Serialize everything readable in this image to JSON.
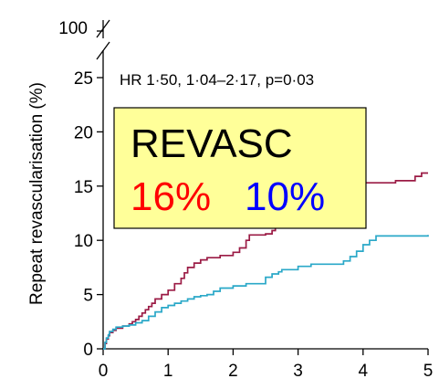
{
  "chart_data": {
    "type": "line",
    "title": "",
    "xlabel": "",
    "ylabel": "Repeat revascularisation (%)",
    "xlim": [
      0,
      5
    ],
    "ylim": [
      0,
      25
    ],
    "axis_break": true,
    "y_break_top_label": "100",
    "x_ticks": [
      "0",
      "1",
      "2",
      "3",
      "4",
      "5"
    ],
    "y_ticks": [
      "0",
      "5",
      "10",
      "15",
      "20",
      "25"
    ],
    "annotation": "HR 1·50, 1·04–2·17, p=0·03",
    "legend_box": {
      "title": "REVASC",
      "labels": [
        {
          "text": "16%",
          "color": "#ff0000"
        },
        {
          "text": "10%",
          "color": "#0000ff"
        }
      ]
    },
    "series": [
      {
        "color": "#9b1b45",
        "x": [
          0,
          0.03,
          0.05,
          0.08,
          0.1,
          0.15,
          0.2,
          0.3,
          0.4,
          0.45,
          0.5,
          0.55,
          0.6,
          0.65,
          0.7,
          0.75,
          0.8,
          0.9,
          1.0,
          1.1,
          1.2,
          1.25,
          1.3,
          1.4,
          1.5,
          1.6,
          1.8,
          2.0,
          2.1,
          2.2,
          2.25,
          2.5,
          2.6,
          2.65,
          2.7,
          2.75,
          2.8,
          3.5,
          3.9,
          4.0,
          4.5,
          4.8,
          4.9,
          5.0
        ],
        "y": [
          0,
          0.5,
          0.9,
          1.2,
          1.5,
          1.7,
          1.9,
          2.1,
          2.3,
          2.5,
          2.7,
          3.0,
          3.3,
          3.6,
          3.9,
          4.2,
          4.6,
          5.0,
          5.4,
          6.0,
          6.5,
          7.0,
          7.5,
          7.9,
          8.2,
          8.4,
          8.6,
          8.9,
          9.3,
          10.0,
          10.5,
          10.6,
          10.9,
          11.2,
          11.6,
          12.0,
          12.5,
          14.5,
          14.9,
          15.3,
          15.5,
          15.9,
          16.2,
          16.2
        ]
      },
      {
        "color": "#2aa8c8",
        "x": [
          0,
          0.03,
          0.05,
          0.08,
          0.1,
          0.15,
          0.2,
          0.3,
          0.4,
          0.5,
          0.6,
          0.7,
          0.8,
          0.9,
          1.0,
          1.1,
          1.2,
          1.3,
          1.4,
          1.5,
          1.6,
          1.7,
          1.8,
          2.0,
          2.2,
          2.5,
          2.6,
          2.7,
          2.75,
          3.0,
          3.2,
          3.5,
          3.7,
          3.8,
          3.9,
          4.0,
          4.1,
          4.2,
          5.0
        ],
        "y": [
          0,
          0.6,
          1.0,
          1.3,
          1.6,
          1.8,
          2.0,
          2.1,
          2.2,
          2.4,
          2.6,
          3.0,
          3.4,
          3.8,
          4.0,
          4.2,
          4.4,
          4.6,
          4.8,
          4.9,
          5.0,
          5.3,
          5.6,
          5.8,
          6.0,
          6.6,
          6.9,
          7.1,
          7.3,
          7.6,
          7.8,
          7.8,
          8.1,
          8.5,
          9.0,
          9.6,
          10.0,
          10.4,
          10.5
        ]
      }
    ]
  }
}
